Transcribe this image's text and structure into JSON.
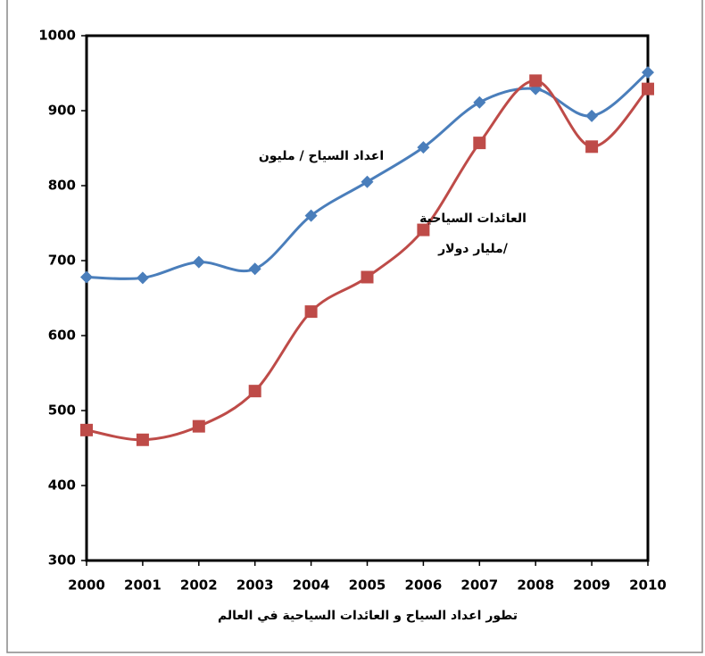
{
  "chart_data": {
    "type": "line",
    "xlabel": "تطور اعداد السياح و العائدات السياحية في العالم",
    "categories": [
      "2000",
      "2001",
      "2002",
      "2003",
      "2004",
      "2005",
      "2006",
      "2007",
      "2008",
      "2009",
      "2010"
    ],
    "series": [
      {
        "name": "اعداد السياح / مليون",
        "color": "#4a7ebb",
        "marker": "diamond",
        "values": [
          678,
          677,
          698,
          689,
          760,
          805,
          851,
          911,
          929,
          893,
          951
        ]
      },
      {
        "name": "العائدات السياحية /مليار دولار",
        "color": "#be4b48",
        "marker": "square",
        "values": [
          474,
          461,
          479,
          526,
          632,
          678,
          741,
          857,
          940,
          852,
          929
        ]
      }
    ],
    "ylim": [
      300,
      1000
    ],
    "yticks": [
      300,
      400,
      500,
      600,
      700,
      800,
      900,
      1000
    ]
  }
}
